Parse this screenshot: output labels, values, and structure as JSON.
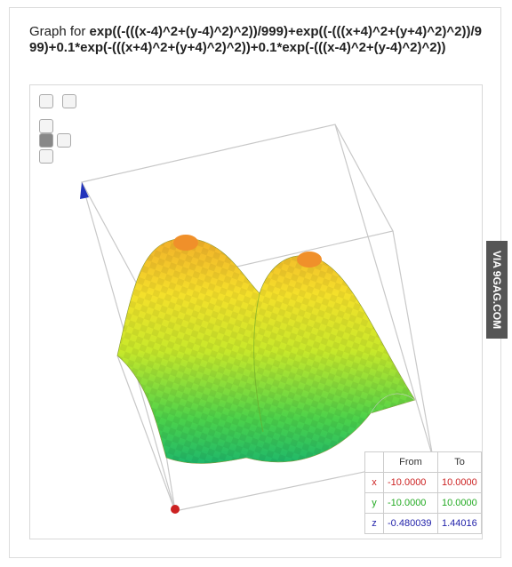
{
  "header": {
    "prefix": "Graph for",
    "formula": "exp((-(((x-4)^2+(y-4)^2)^2))/999)+exp((-(((x+4)^2+(y+4)^2)^2))/999)+0.1*exp(-(((x+4)^2+(y+4)^2)^2))+0.1*exp(-(((x-4)^2+(y-4)^2)^2))"
  },
  "table": {
    "columns": [
      "From",
      "To"
    ],
    "rows": [
      [
        "x",
        "-10.0000",
        "10.0000"
      ],
      [
        "y",
        "-10.0000",
        "10.0000"
      ],
      [
        "z",
        "-0.480039",
        "1.44016"
      ]
    ],
    "colors": [
      "#cc2222",
      "#22aa22",
      "#2222aa"
    ]
  },
  "watermark": "VIA 9GAG.COM"
}
